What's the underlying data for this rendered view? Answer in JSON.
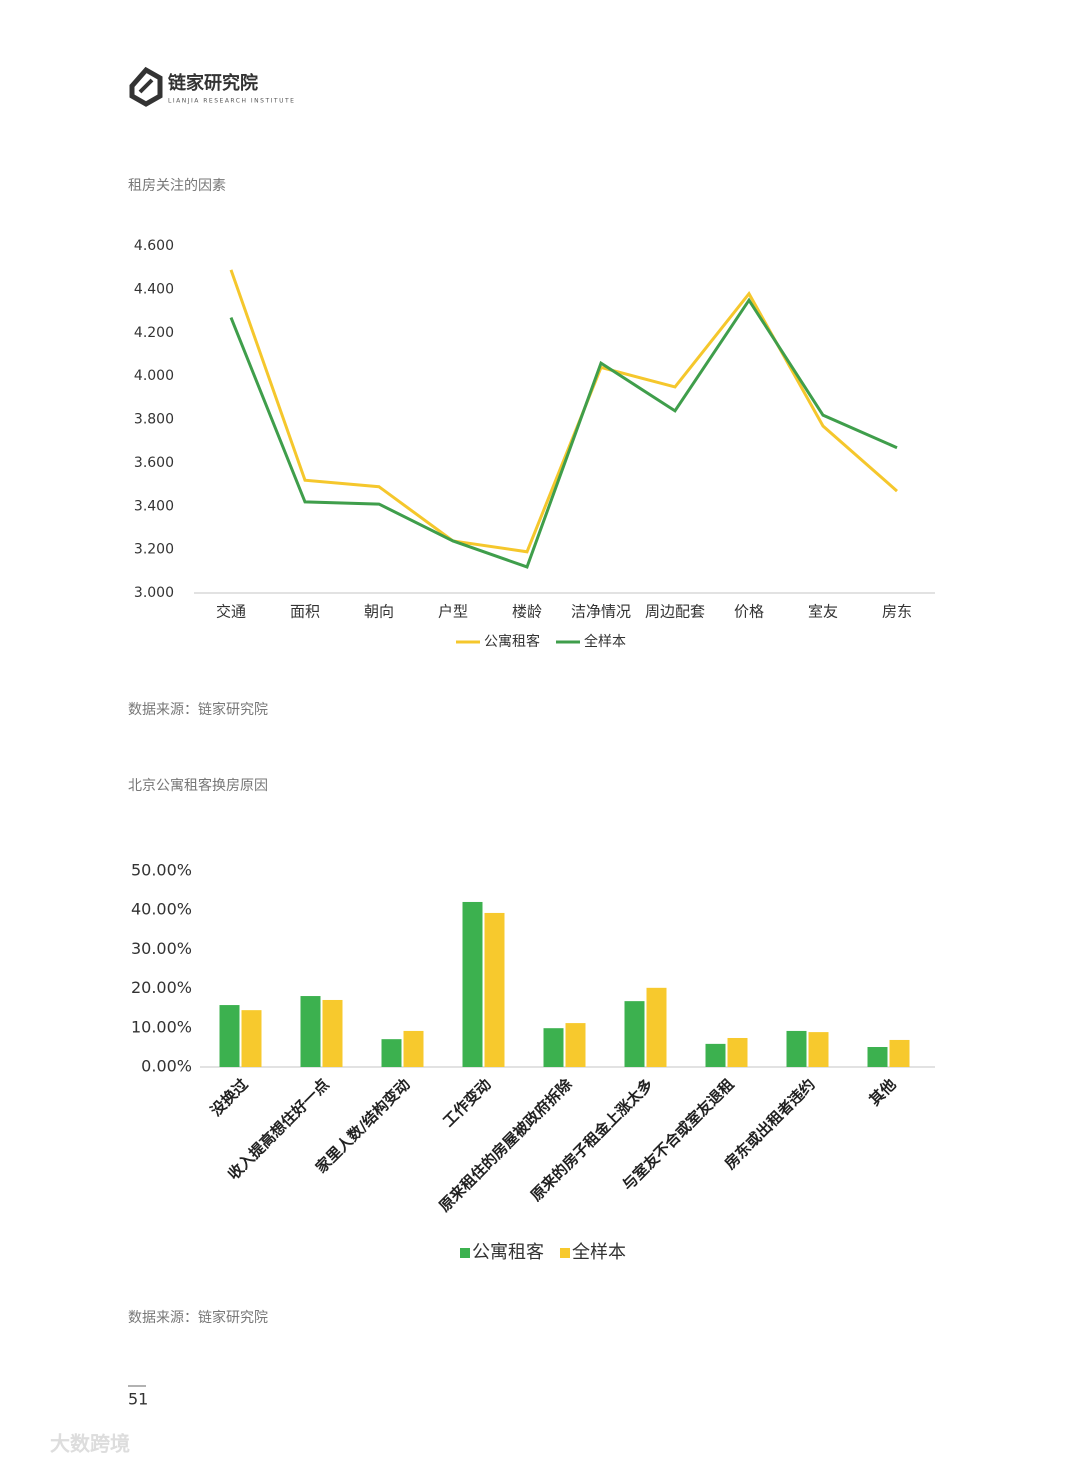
{
  "header": {
    "logo": "链家研究院",
    "logo_en": "LIANJIA RESEARCH INSTITUTE"
  },
  "chart_data": [
    {
      "type": "line",
      "title": "租房关注的因素",
      "categories": [
        "交通",
        "面积",
        "朝向",
        "户型",
        "楼龄",
        "洁净情况",
        "周边配套",
        "价格",
        "室友",
        "房东"
      ],
      "series": [
        {
          "name": "公寓租客",
          "color": "#f5c72c",
          "values": [
            4.49,
            3.52,
            3.49,
            3.24,
            3.19,
            4.04,
            3.95,
            4.38,
            3.77,
            3.47
          ]
        },
        {
          "name": "全样本",
          "color": "#3f9e4b",
          "values": [
            4.27,
            3.42,
            3.41,
            3.24,
            3.12,
            4.06,
            3.84,
            4.35,
            3.82,
            3.67
          ]
        }
      ],
      "ylim": [
        3.0,
        4.6
      ],
      "yticks": [
        {
          "value": 3.0,
          "label": "3.000"
        },
        {
          "value": 3.2,
          "label": "3.200"
        },
        {
          "value": 3.4,
          "label": "3.400"
        },
        {
          "value": 3.6,
          "label": "3.600"
        },
        {
          "value": 3.8,
          "label": "3.800"
        },
        {
          "value": 4.0,
          "label": "4.000"
        },
        {
          "value": 4.2,
          "label": "4.200"
        },
        {
          "value": 4.4,
          "label": "4.400"
        },
        {
          "value": 4.6,
          "label": "4.600"
        }
      ],
      "grid": false,
      "legend": "bottom"
    },
    {
      "type": "bar",
      "title": "北京公寓租客换房原因",
      "categories": [
        "没换过",
        "收入提高想住好一点",
        "家里人数/结构变动",
        "工作变动",
        "原来租住的房屋被政府拆除",
        "原来的房子租金上涨太多",
        "与室友不合或室友退租",
        "房东或出租者违约",
        "其他"
      ],
      "series": [
        {
          "name": "公寓租客",
          "color": "#3cb14f",
          "values": [
            15.8,
            18.1,
            7.1,
            42.1,
            9.9,
            16.8,
            5.9,
            9.2,
            5.1
          ]
        },
        {
          "name": "全样本",
          "color": "#f7c92d",
          "values": [
            14.5,
            17.1,
            9.2,
            39.3,
            11.2,
            20.2,
            7.4,
            8.9,
            6.9
          ]
        }
      ],
      "ylim": [
        0,
        50
      ],
      "yticks": [
        {
          "value": 0,
          "label": "0.00%"
        },
        {
          "value": 10,
          "label": "10.00%"
        },
        {
          "value": 20,
          "label": "20.00%"
        },
        {
          "value": 30,
          "label": "30.00%"
        },
        {
          "value": 40,
          "label": "40.00%"
        },
        {
          "value": 50,
          "label": "50.00%"
        }
      ],
      "grid": false,
      "legend": "bottom"
    }
  ],
  "sources": [
    "数据来源：链家研究院",
    "数据来源：链家研究院"
  ],
  "page_number": "51",
  "watermark": "大数跨境"
}
